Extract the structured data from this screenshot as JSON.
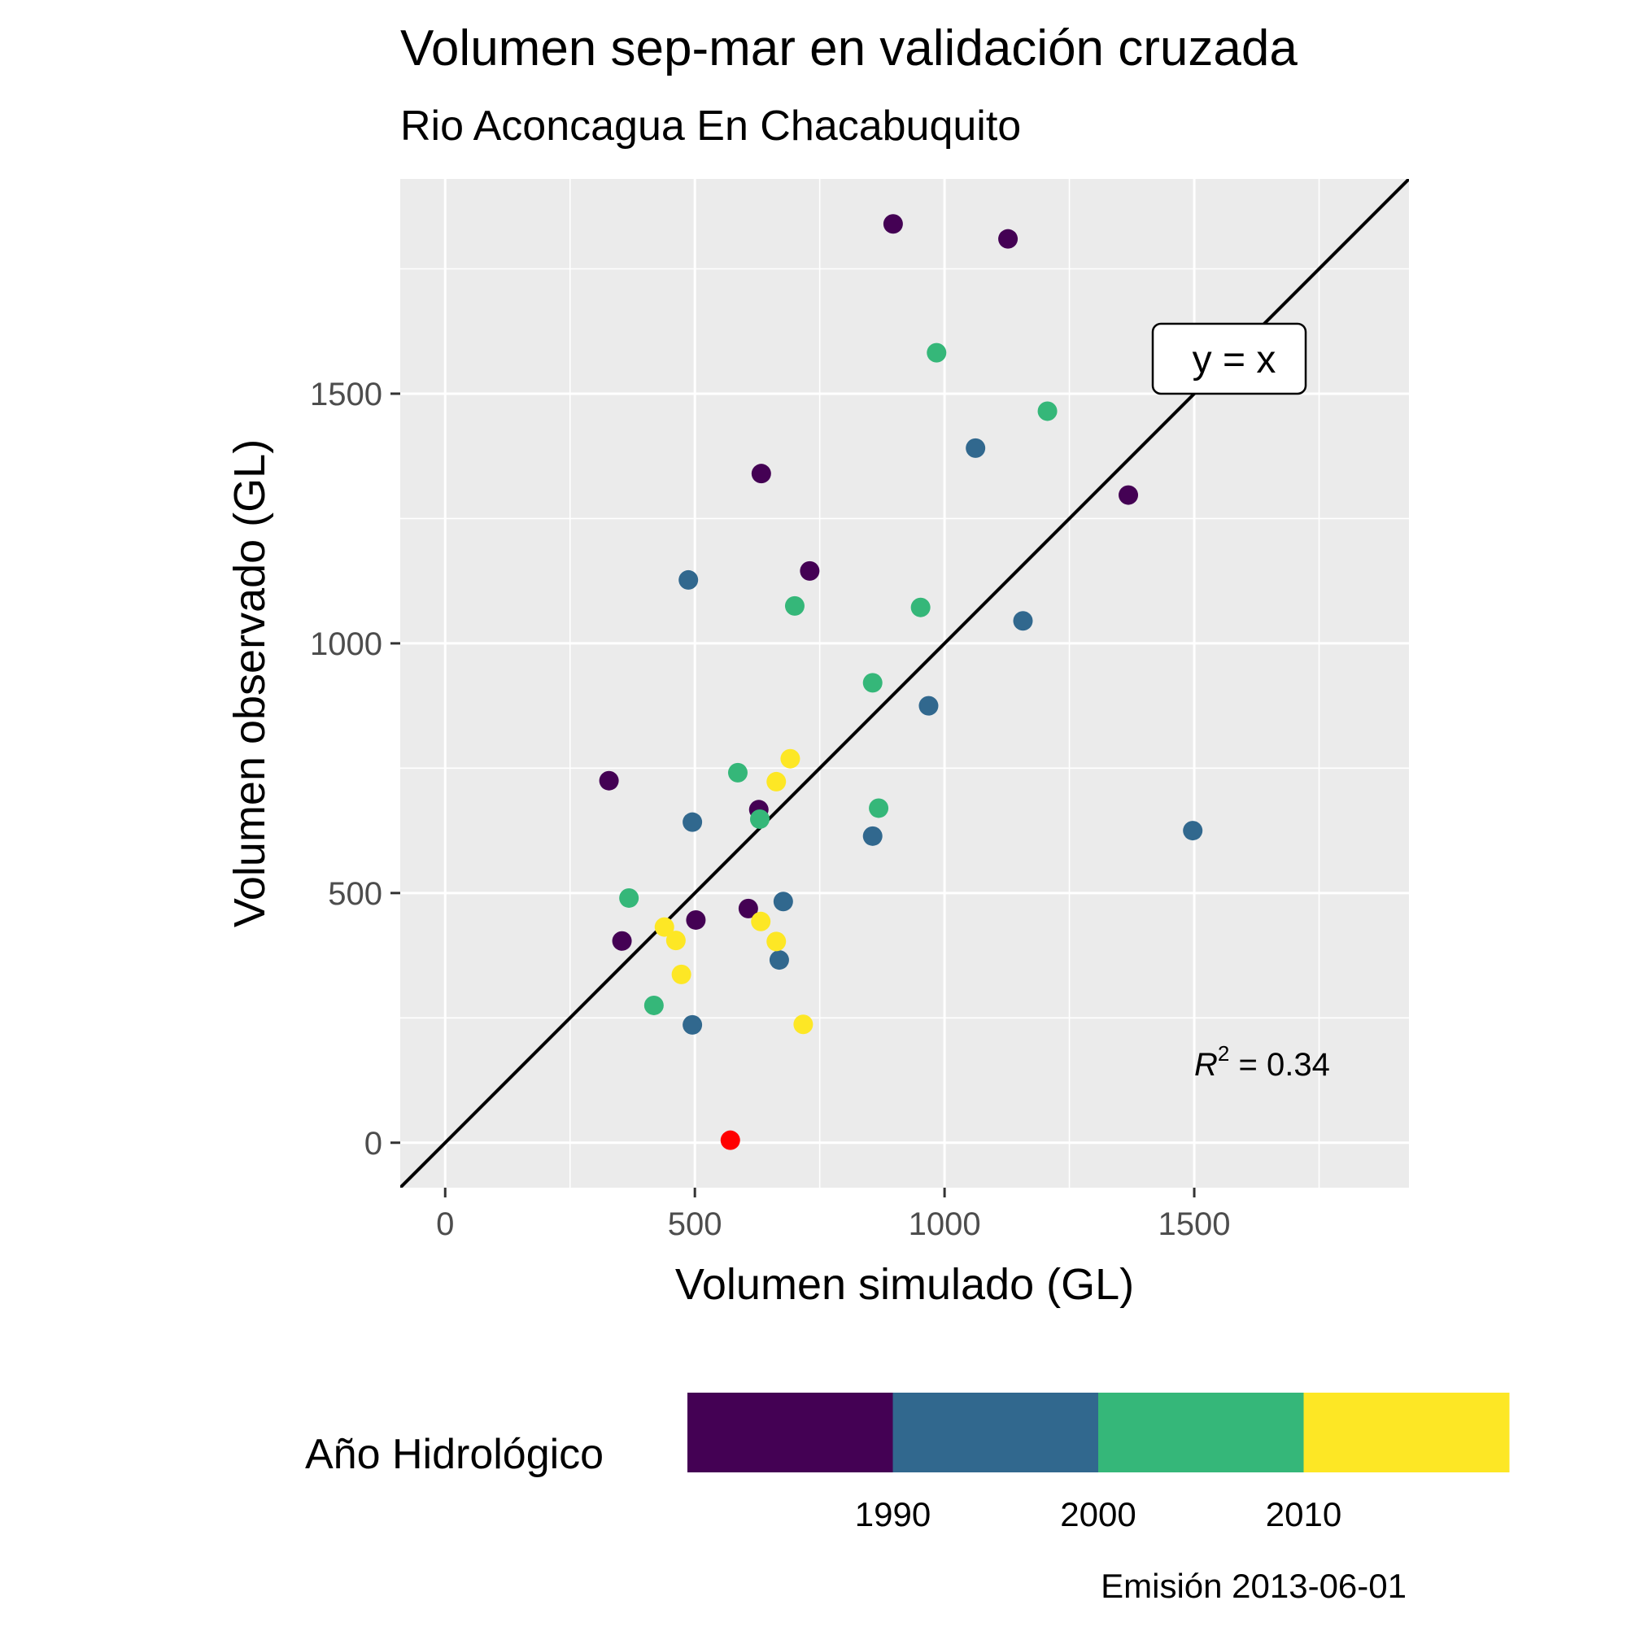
{
  "chart_data": {
    "type": "scatter",
    "title": "Volumen sep-mar en validación cruzada",
    "subtitle": "Rio Aconcagua En Chacabuquito",
    "xlabel": "Volumen simulado (GL)",
    "ylabel": "Volumen observado (GL)",
    "xlim": [
      -90,
      1930
    ],
    "ylim": [
      -90,
      1930
    ],
    "xticks": [
      0,
      500,
      1000,
      1500
    ],
    "yticks": [
      0,
      500,
      1000,
      1500
    ],
    "x_tick_labels": [
      "0",
      "500",
      "1000",
      "1500"
    ],
    "y_tick_labels": [
      "0",
      "500",
      "1000",
      "1500"
    ],
    "grid": true,
    "reference_line": {
      "label": "y = x",
      "slope": 1,
      "intercept": 0,
      "label_x": 1570,
      "label_y": 1570
    },
    "r2": {
      "symbol": "R",
      "superscript": "2",
      "value_text": " = 0.34",
      "x": 1500,
      "y": 135
    },
    "legend": {
      "title": "Año Hidrológico",
      "placement": "bottom",
      "colors": [
        "#440154",
        "#31688e",
        "#35b779",
        "#fde725"
      ],
      "tick_labels": [
        "1990",
        "2000",
        "2010"
      ]
    },
    "highlight_color": "#ff0000",
    "points": [
      {
        "x": 897,
        "y": 1840,
        "group": 0
      },
      {
        "x": 1127,
        "y": 1810,
        "group": 0
      },
      {
        "x": 633,
        "y": 1340,
        "group": 0
      },
      {
        "x": 730,
        "y": 1145,
        "group": 0
      },
      {
        "x": 1368,
        "y": 1297,
        "group": 0
      },
      {
        "x": 328,
        "y": 725,
        "group": 0
      },
      {
        "x": 628,
        "y": 667,
        "group": 0
      },
      {
        "x": 607,
        "y": 469,
        "group": 0
      },
      {
        "x": 502,
        "y": 446,
        "group": 0
      },
      {
        "x": 354,
        "y": 404,
        "group": 0
      },
      {
        "x": 487,
        "y": 1127,
        "group": 1
      },
      {
        "x": 1062,
        "y": 1391,
        "group": 1
      },
      {
        "x": 1157,
        "y": 1045,
        "group": 1
      },
      {
        "x": 968,
        "y": 875,
        "group": 1
      },
      {
        "x": 495,
        "y": 642,
        "group": 1
      },
      {
        "x": 856,
        "y": 614,
        "group": 1
      },
      {
        "x": 1497,
        "y": 625,
        "group": 1
      },
      {
        "x": 677,
        "y": 483,
        "group": 1
      },
      {
        "x": 669,
        "y": 366,
        "group": 1
      },
      {
        "x": 495,
        "y": 236,
        "group": 1
      },
      {
        "x": 984,
        "y": 1582,
        "group": 2
      },
      {
        "x": 1206,
        "y": 1465,
        "group": 2
      },
      {
        "x": 700,
        "y": 1075,
        "group": 2
      },
      {
        "x": 952,
        "y": 1072,
        "group": 2
      },
      {
        "x": 856,
        "y": 921,
        "group": 2
      },
      {
        "x": 586,
        "y": 741,
        "group": 2
      },
      {
        "x": 868,
        "y": 670,
        "group": 2
      },
      {
        "x": 630,
        "y": 648,
        "group": 2
      },
      {
        "x": 368,
        "y": 490,
        "group": 2
      },
      {
        "x": 418,
        "y": 275,
        "group": 2
      },
      {
        "x": 691,
        "y": 769,
        "group": 3
      },
      {
        "x": 663,
        "y": 723,
        "group": 3
      },
      {
        "x": 632,
        "y": 443,
        "group": 3
      },
      {
        "x": 439,
        "y": 432,
        "group": 3
      },
      {
        "x": 462,
        "y": 405,
        "group": 3
      },
      {
        "x": 663,
        "y": 403,
        "group": 3
      },
      {
        "x": 473,
        "y": 337,
        "group": 3
      },
      {
        "x": 717,
        "y": 237,
        "group": 3
      },
      {
        "x": 571,
        "y": 5,
        "group": "highlight"
      }
    ]
  },
  "caption": "Emisión 2013-06-01"
}
